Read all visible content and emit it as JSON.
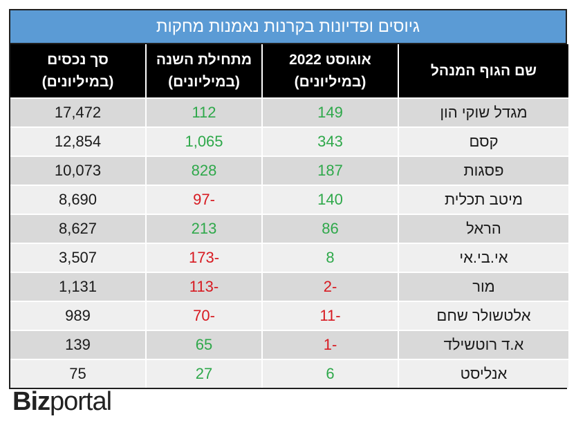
{
  "table": {
    "title": "גיוסים ופדיונות בקרנות נאמנות מחקות",
    "headers": [
      {
        "line1": "שם הגוף המנהל",
        "line2": ""
      },
      {
        "line1": "אוגוסט 2022",
        "line2": "(במיליונים)"
      },
      {
        "line1": "מתחילת השנה",
        "line2": "(במיליונים)"
      },
      {
        "line1": "סך נכסים",
        "line2": "(במיליונים)"
      }
    ],
    "rows": [
      {
        "name": "מגדל שוקי הון",
        "aug": "149",
        "ytd": "112",
        "assets": "17,472"
      },
      {
        "name": "קסם",
        "aug": "343",
        "ytd": "1,065",
        "assets": "12,854"
      },
      {
        "name": "פסגות",
        "aug": "187",
        "ytd": "828",
        "assets": "10,073"
      },
      {
        "name": "מיטב תכלית",
        "aug": "140",
        "ytd": "-97",
        "assets": "8,690"
      },
      {
        "name": "הראל",
        "aug": "86",
        "ytd": "213",
        "assets": "8,627"
      },
      {
        "name": "אי.בי.אי",
        "aug": "8",
        "ytd": "-173",
        "assets": "3,507"
      },
      {
        "name": "מור",
        "aug": "-2",
        "ytd": "-113",
        "assets": "1,131"
      },
      {
        "name": "אלטשולר שחם",
        "aug": "-11",
        "ytd": "-70",
        "assets": "989"
      },
      {
        "name": "א.ד רוטשילד",
        "aug": "-1",
        "ytd": "65",
        "assets": "139"
      },
      {
        "name": "אנליסט",
        "aug": "6",
        "ytd": "27",
        "assets": "75"
      }
    ]
  },
  "logo": {
    "part1": "Biz",
    "part2": "portal"
  },
  "colors": {
    "title_bg": "#5b9bd5",
    "positive": "#2ea84a",
    "negative": "#d71920",
    "header_bg": "#000000"
  }
}
